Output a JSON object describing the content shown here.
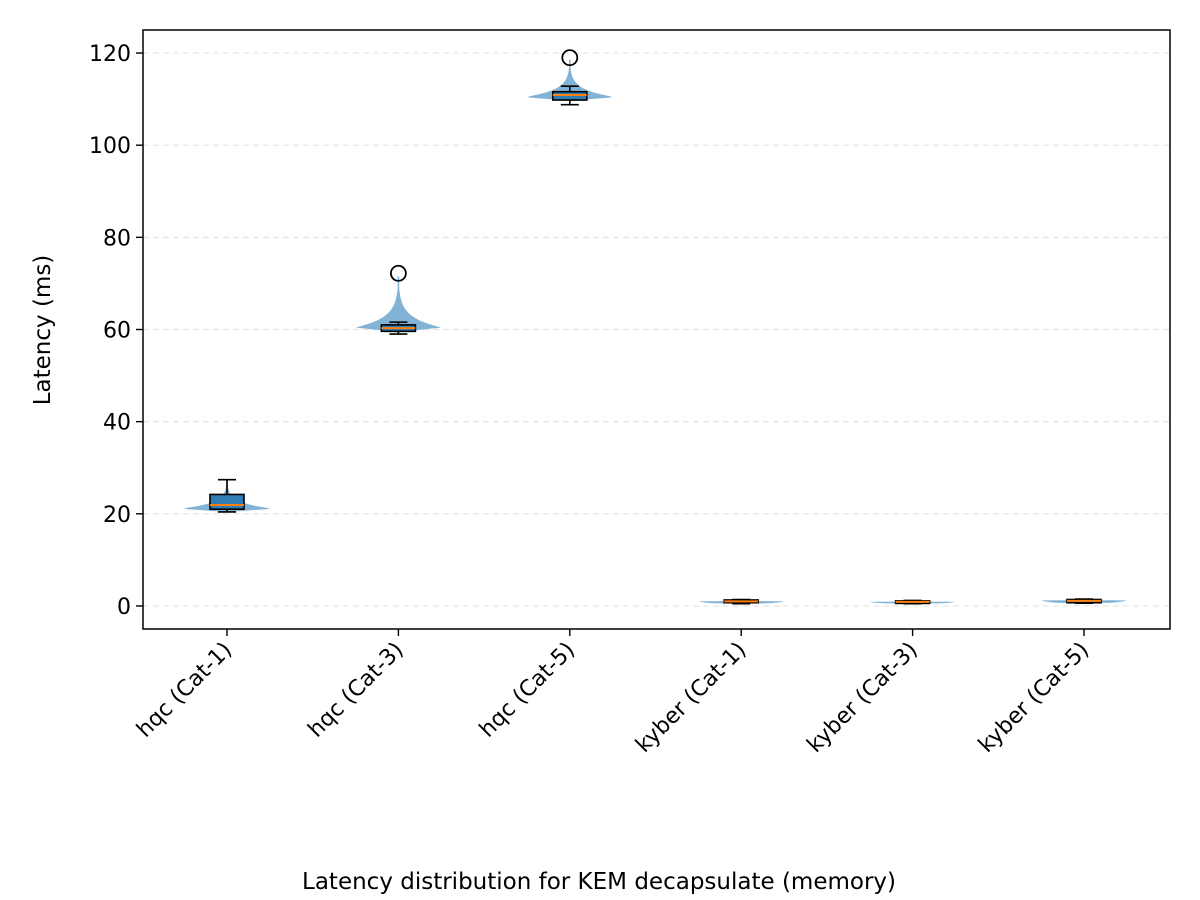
{
  "chart_data": {
    "type": "violin",
    "title": "",
    "xlabel": "Latency distribution for KEM decapsulate (memory)",
    "ylabel": "Latency (ms)",
    "ylim": [
      -5,
      125
    ],
    "yticks": [
      0,
      20,
      40,
      60,
      80,
      100,
      120
    ],
    "grid": "y-dashed",
    "colors": {
      "violin": "#7bafd4",
      "box": "#2f7db4",
      "median": "#ff7f0e",
      "outline": "#000000",
      "grid": "#e3e3e3"
    },
    "categories": [
      "hqc (Cat-1)",
      "hqc (Cat-3)",
      "hqc (Cat-5)",
      "kyber (Cat-1)",
      "kyber (Cat-3)",
      "kyber (Cat-5)"
    ],
    "series": [
      {
        "category": "hqc (Cat-1)",
        "min": 20.4,
        "q1": 21.0,
        "median": 21.9,
        "q3": 24.2,
        "max": 27.4,
        "outliers": [],
        "violin_min": 20.4,
        "violin_max": 27.4,
        "mode": 21.2
      },
      {
        "category": "hqc (Cat-3)",
        "min": 59.0,
        "q1": 59.6,
        "median": 60.3,
        "q3": 61.0,
        "max": 61.6,
        "outliers": [
          72.2
        ],
        "violin_min": 59.4,
        "violin_max": 71.5,
        "mode": 60.4
      },
      {
        "category": "hqc (Cat-5)",
        "min": 108.8,
        "q1": 109.8,
        "median": 110.9,
        "q3": 111.6,
        "max": 112.8,
        "outliers": [
          119.0
        ],
        "violin_min": 109.6,
        "violin_max": 118.5,
        "mode": 110.5
      },
      {
        "category": "kyber (Cat-1)",
        "min": 0.5,
        "q1": 0.7,
        "median": 1.0,
        "q3": 1.3,
        "max": 1.4,
        "outliers": [],
        "violin_min": 0.5,
        "violin_max": 1.4,
        "mode": 1.0
      },
      {
        "category": "kyber (Cat-3)",
        "min": 0.5,
        "q1": 0.6,
        "median": 0.9,
        "q3": 1.1,
        "max": 1.2,
        "outliers": [],
        "violin_min": 0.5,
        "violin_max": 1.2,
        "mode": 0.9
      },
      {
        "category": "kyber (Cat-5)",
        "min": 0.6,
        "q1": 0.7,
        "median": 1.1,
        "q3": 1.4,
        "max": 1.5,
        "outliers": [],
        "violin_min": 0.6,
        "violin_max": 1.5,
        "mode": 1.2
      }
    ]
  }
}
